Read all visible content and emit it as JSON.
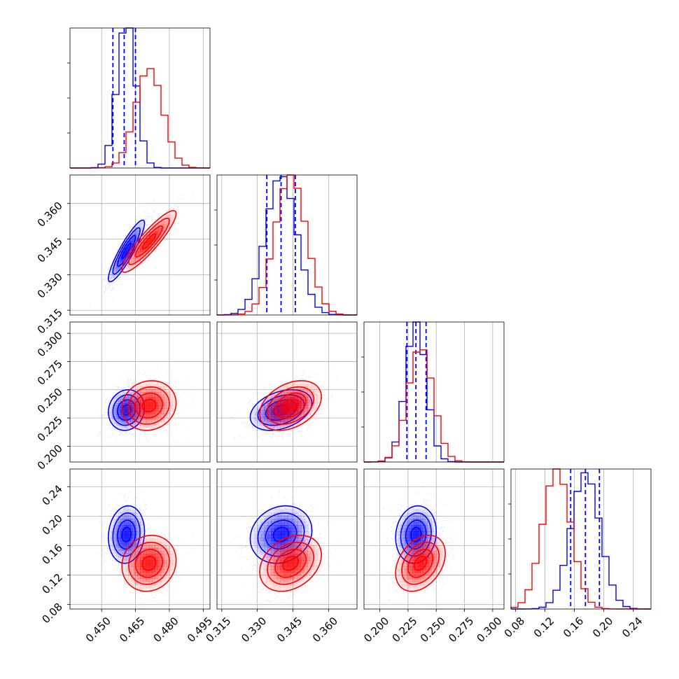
{
  "chart_data": {
    "type": "corner",
    "parameters": [
      {
        "name": "",
        "range": [
          0.436,
          0.498
        ],
        "ticks": [
          0.45,
          0.465,
          0.48,
          0.495
        ],
        "tick_labels": [
          "0.450",
          "0.465",
          "0.480",
          "0.495"
        ]
      },
      {
        "name": "",
        "range": [
          0.313,
          0.372
        ],
        "ticks": [
          0.315,
          0.33,
          0.345,
          0.36
        ],
        "tick_labels": [
          "0.315",
          "0.330",
          "0.345",
          "0.360"
        ]
      },
      {
        "name": "",
        "range": [
          0.186,
          0.31
        ],
        "ticks": [
          0.2,
          0.225,
          0.25,
          0.275,
          0.3
        ],
        "tick_labels": [
          "0.200",
          "0.225",
          "0.250",
          "0.275",
          "0.300"
        ]
      },
      {
        "name": "",
        "range": [
          0.074,
          0.264
        ],
        "ticks": [
          0.08,
          0.12,
          0.16,
          0.2,
          0.24
        ],
        "tick_labels": [
          "0.08",
          "0.12",
          "0.16",
          "0.20",
          "0.24"
        ]
      }
    ],
    "series": [
      {
        "color": "#0000ff",
        "means": [
          0.461,
          0.34,
          0.232,
          0.175
        ],
        "sigmas": [
          0.004,
          0.0065,
          0.009,
          0.0195
        ],
        "correlations": {
          "0-1": 0.9,
          "0-2": 0.1,
          "0-3": 0.1,
          "1-2": 0.35,
          "1-3": 0.15,
          "2-3": 0.1
        },
        "quantiles": [
          [
            0.455,
            0.46,
            0.465
          ],
          [
            0.334,
            0.34,
            0.346
          ],
          [
            0.224,
            0.232,
            0.241
          ],
          [
            0.155,
            0.175,
            0.194
          ]
        ]
      },
      {
        "color": "#ff0000",
        "means": [
          0.471,
          0.344,
          0.236,
          0.136
        ],
        "sigmas": [
          0.006,
          0.0065,
          0.011,
          0.019
        ],
        "correlations": {
          "0-1": 0.9,
          "0-2": 0.1,
          "0-3": 0.1,
          "1-2": 0.35,
          "1-3": 0.3,
          "2-3": 0.35
        },
        "quantiles": null
      }
    ],
    "grid": true,
    "legend": "none"
  }
}
